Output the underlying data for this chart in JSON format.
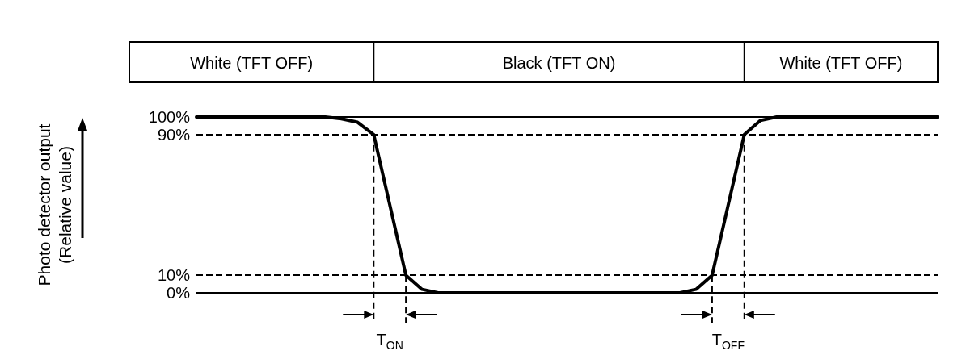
{
  "chart_data": {
    "type": "line",
    "ylabel": "Photo detector output\n(Relative value)",
    "categories": [
      null,
      null,
      null,
      null,
      null,
      null,
      null,
      null,
      null,
      null,
      null,
      null,
      null,
      null,
      null,
      null,
      null,
      null,
      null,
      null,
      null,
      null,
      null,
      null,
      null,
      null,
      null,
      null,
      null,
      null,
      null,
      null,
      null,
      null,
      null,
      null,
      null,
      null,
      null,
      null,
      null,
      null,
      null,
      null,
      null,
      null,
      null
    ],
    "series": [
      {
        "color": "#000000",
        "values": [
          100,
          100,
          100,
          100,
          100,
          100,
          100,
          100,
          100,
          99,
          97,
          90,
          50,
          10,
          2,
          0,
          0,
          0,
          0,
          0,
          0,
          0,
          0,
          0,
          0,
          0,
          0,
          0,
          0,
          0,
          0,
          2,
          10,
          50,
          90,
          98,
          100,
          100,
          100,
          100,
          100,
          100,
          100,
          100,
          100,
          100,
          100
        ]
      }
    ],
    "relative": false,
    "ylim": [
      0,
      100
    ],
    "yticks": [
      {
        "value": 0,
        "label": "0%"
      },
      {
        "value": 10,
        "label": "10%"
      },
      {
        "value": 90,
        "label": "90%"
      },
      {
        "value": 100,
        "label": "100%"
      }
    ],
    "ref_lines": [
      {
        "axis": "y",
        "value": 100,
        "line_style": "solid"
      },
      {
        "axis": "y",
        "value": 90,
        "line_style": "dashed"
      },
      {
        "axis": "y",
        "value": 10,
        "line_style": "dashed"
      },
      {
        "axis": "y",
        "value": 0,
        "line_style": "solid"
      }
    ],
    "annotations": [
      "White (TFT OFF)",
      "Black (TFT ON)",
      "White (TFT OFF)",
      "T$_{ON}$",
      "T$_{OFF}$"
    ],
    "line_style": "solid",
    "marker": "none",
    "grid": false
  }
}
